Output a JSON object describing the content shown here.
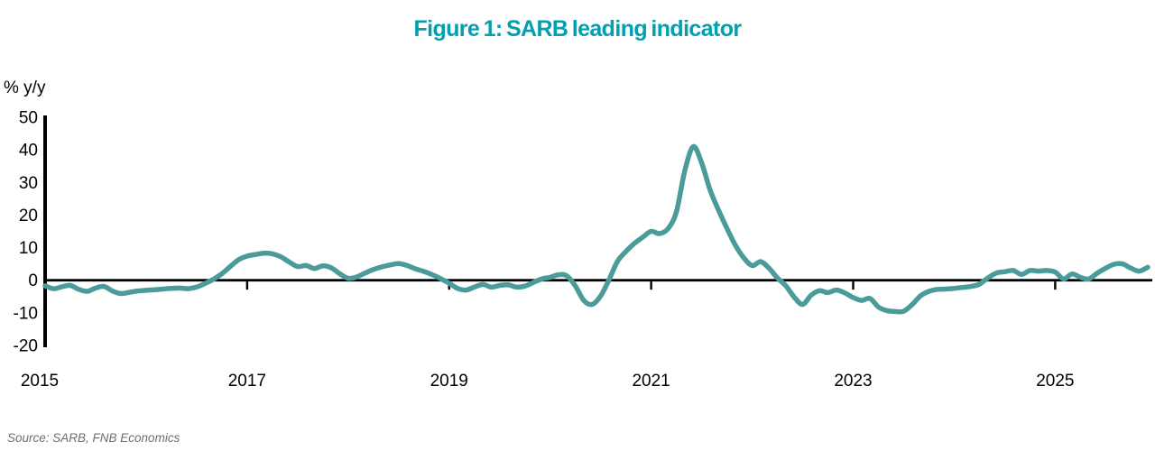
{
  "page": {
    "title": "Figure 1: SARB leading indicator",
    "source_note": "Source: SARB, FNB Economics"
  },
  "colors": {
    "title_teal": "#00a0b0",
    "line_teal": "#4a9b9a",
    "axis_black": "#000000",
    "source_gray": "#6d6e71"
  },
  "chart_data": {
    "type": "line",
    "title": "Figure 1: SARB leading indicator",
    "ylabel": "% y/y",
    "source": "Source: SARB, FNB Economics",
    "ylim": [
      -20,
      50
    ],
    "yticks": [
      50,
      40,
      30,
      20,
      10,
      0,
      -10,
      -20
    ],
    "xticks": [
      "2015",
      "2017",
      "2019",
      "2021",
      "2023",
      "2025"
    ],
    "x_start": "2015-01",
    "x_frequency": "monthly",
    "grid": false,
    "legend_position": "none",
    "zero_baseline": true,
    "series": [
      {
        "name": "SARB leading indicator, % y/y",
        "values": [
          -1.7,
          -2.6,
          -2.0,
          -1.6,
          -2.8,
          -3.4,
          -2.4,
          -1.9,
          -3.3,
          -4.1,
          -3.7,
          -3.3,
          -3.1,
          -2.9,
          -2.7,
          -2.5,
          -2.4,
          -2.6,
          -2.1,
          -1.0,
          0.3,
          2.0,
          4.2,
          6.3,
          7.4,
          7.9,
          8.3,
          8.1,
          7.2,
          5.6,
          4.2,
          4.5,
          3.6,
          4.4,
          3.8,
          2.0,
          0.6,
          1.0,
          2.2,
          3.3,
          4.1,
          4.7,
          5.1,
          4.5,
          3.5,
          2.7,
          1.7,
          0.5,
          -0.9,
          -2.5,
          -3.0,
          -2.1,
          -1.3,
          -2.1,
          -1.6,
          -1.4,
          -2.1,
          -1.8,
          -0.7,
          0.4,
          0.9,
          1.7,
          1.3,
          -1.8,
          -6.2,
          -7.4,
          -4.8,
          0.2,
          5.8,
          8.8,
          11.3,
          13.2,
          15.0,
          14.3,
          15.8,
          21.0,
          33.6,
          41.0,
          36.0,
          27.7,
          21.5,
          15.9,
          10.8,
          6.9,
          4.5,
          5.7,
          3.7,
          0.7,
          -1.7,
          -5.2,
          -7.4,
          -4.6,
          -3.2,
          -3.8,
          -3.0,
          -3.9,
          -5.3,
          -6.2,
          -5.6,
          -8.2,
          -9.3,
          -9.6,
          -9.5,
          -7.5,
          -4.8,
          -3.4,
          -2.8,
          -2.7,
          -2.5,
          -2.2,
          -1.9,
          -1.2,
          0.7,
          2.2,
          2.6,
          3.0,
          1.8,
          3.0,
          2.8,
          3.0,
          2.5,
          0.4,
          1.9,
          0.9,
          0.4,
          2.2,
          3.7,
          4.9,
          5.0,
          3.7,
          2.8,
          4.0
        ]
      }
    ]
  }
}
